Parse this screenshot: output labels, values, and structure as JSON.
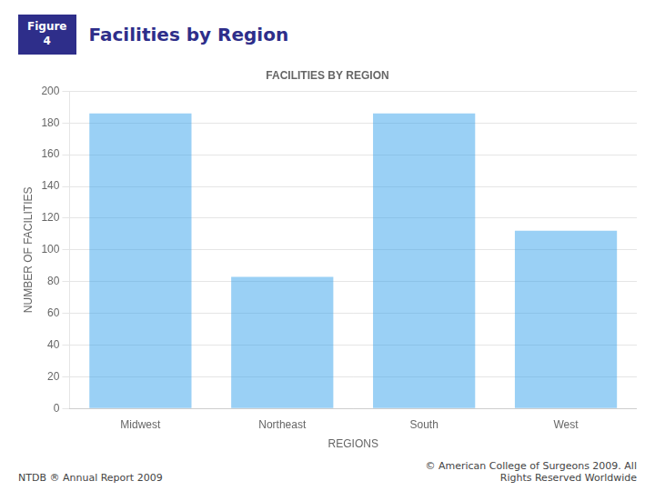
{
  "chart_data": {
    "type": "bar",
    "title": "FACILITIES BY REGION",
    "annotations": [
      "Figure\n4",
      "Facilities by Region",
      "NTDB ® Annual Report 2009",
      "© American College of Surgeons 2009.  All\nRights Reserved Worldwide"
    ],
    "categories": [
      "Midwest",
      "Northeast",
      "South",
      "West"
    ],
    "values": [
      186,
      83,
      186,
      112
    ],
    "xlabel": "REGIONS",
    "ylabel": "NUMBER OF FACILITIES",
    "ylim": [
      0,
      200
    ],
    "yticks": [
      0,
      20,
      40,
      60,
      80,
      100,
      120,
      140,
      160,
      180,
      200
    ],
    "grid": true
  }
}
